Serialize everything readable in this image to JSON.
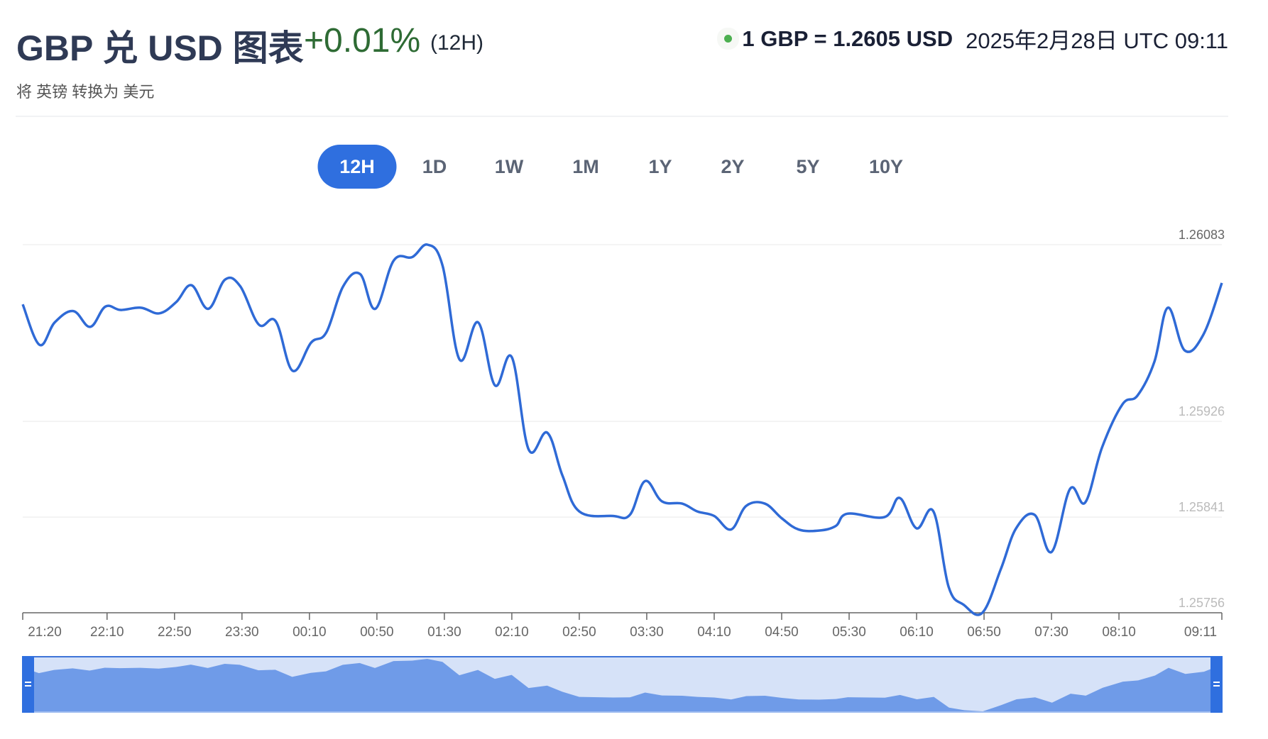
{
  "header": {
    "title": "GBP 兑 USD 图表",
    "change": "+0.01%",
    "period": "(12H)",
    "subtitle": "将 英镑 转换为 美元",
    "rate": "1 GBP = 1.2605 USD",
    "timestamp": "2025年2月28日 UTC 09:11"
  },
  "tabs": [
    {
      "label": "12H",
      "active": true
    },
    {
      "label": "1D"
    },
    {
      "label": "1W"
    },
    {
      "label": "1M"
    },
    {
      "label": "1Y"
    },
    {
      "label": "2Y"
    },
    {
      "label": "5Y"
    },
    {
      "label": "10Y"
    }
  ],
  "colors": {
    "line": "#2f6ad6",
    "accent": "#2f6fdf",
    "nav_bg": "#d6e2f8",
    "nav_fill": "#6f9be8",
    "positive": "#2e6b34",
    "live": "#4caf50"
  },
  "chart_data": {
    "type": "line",
    "title": "GBP 兑 USD 图表",
    "xlabel": "",
    "ylabel": "",
    "x_unit": "minutes since 21:20",
    "xlim": [
      0,
      711
    ],
    "ylim": [
      1.25756,
      1.26083
    ],
    "y_ticks": [
      "1.26083",
      "1.25926",
      "1.25841",
      "1.25756"
    ],
    "x_ticks": [
      {
        "label": "21:20",
        "min": 0
      },
      {
        "label": "22:10",
        "min": 50
      },
      {
        "label": "22:50",
        "min": 90
      },
      {
        "label": "23:30",
        "min": 130
      },
      {
        "label": "00:10",
        "min": 170
      },
      {
        "label": "00:50",
        "min": 210
      },
      {
        "label": "01:30",
        "min": 250
      },
      {
        "label": "02:10",
        "min": 290
      },
      {
        "label": "02:50",
        "min": 330
      },
      {
        "label": "03:30",
        "min": 370
      },
      {
        "label": "04:10",
        "min": 410
      },
      {
        "label": "04:50",
        "min": 450
      },
      {
        "label": "05:30",
        "min": 490
      },
      {
        "label": "06:10",
        "min": 530
      },
      {
        "label": "06:50",
        "min": 570
      },
      {
        "label": "07:30",
        "min": 610
      },
      {
        "label": "08:10",
        "min": 650
      },
      {
        "label": "09:11",
        "min": 711
      }
    ],
    "grid": true,
    "series": [
      {
        "name": "GBP/USD",
        "x": [
          0,
          10,
          19,
          30,
          40,
          49,
          58,
          70,
          81,
          91,
          100,
          110,
          120,
          129,
          140,
          150,
          160,
          171,
          180,
          190,
          200,
          209,
          220,
          231,
          240,
          249,
          259,
          270,
          280,
          290,
          300,
          311,
          320,
          330,
          350,
          360,
          369,
          379,
          391,
          400,
          410,
          420,
          429,
          440,
          450,
          460,
          472,
          482,
          489,
          511,
          520,
          530,
          540,
          549,
          558,
          569,
          580,
          589,
          600,
          610,
          621,
          630,
          640,
          652,
          661,
          671,
          679,
          689,
          700,
          711
        ],
        "y": [
          1.2603,
          1.25994,
          1.26014,
          1.26024,
          1.2601,
          1.26028,
          1.26025,
          1.26027,
          1.26022,
          1.26032,
          1.26047,
          1.26026,
          1.26052,
          1.26046,
          1.26012,
          1.26015,
          1.25971,
          1.25996,
          1.26005,
          1.26046,
          1.26057,
          1.26026,
          1.26069,
          1.26072,
          1.26083,
          1.26064,
          1.25981,
          1.26014,
          1.25958,
          1.25983,
          1.25901,
          1.25916,
          1.25878,
          1.25846,
          1.25842,
          1.25843,
          1.25873,
          1.25855,
          1.25853,
          1.25846,
          1.25842,
          1.2583,
          1.25851,
          1.25853,
          1.2584,
          1.2583,
          1.25829,
          1.25833,
          1.25844,
          1.25841,
          1.25858,
          1.25831,
          1.25846,
          1.25779,
          1.25763,
          1.25756,
          1.25795,
          1.25831,
          1.25843,
          1.2581,
          1.25866,
          1.25854,
          1.25903,
          1.25941,
          1.25949,
          1.25979,
          1.26027,
          1.25989,
          1.26003,
          1.26049
        ]
      }
    ]
  }
}
